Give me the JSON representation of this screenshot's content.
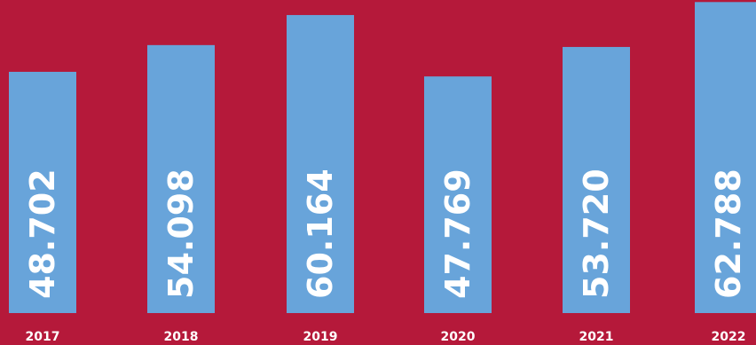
{
  "chart_data": {
    "type": "bar",
    "categories": [
      "2017",
      "2018",
      "2019",
      "2020",
      "2021",
      "2022"
    ],
    "values": [
      48.702,
      54.098,
      60.164,
      47.769,
      53.72,
      62.788
    ],
    "value_labels": [
      "48.702",
      "54.098",
      "60.164",
      "47.769",
      "53.720",
      "62.788"
    ],
    "title": "",
    "xlabel": "",
    "ylabel": "",
    "ylim": [
      0,
      63.2
    ],
    "grid": false,
    "legend": "none",
    "colors": {
      "background": "#b5193a",
      "bar": "#68a4da",
      "text": "#ffffff"
    }
  }
}
